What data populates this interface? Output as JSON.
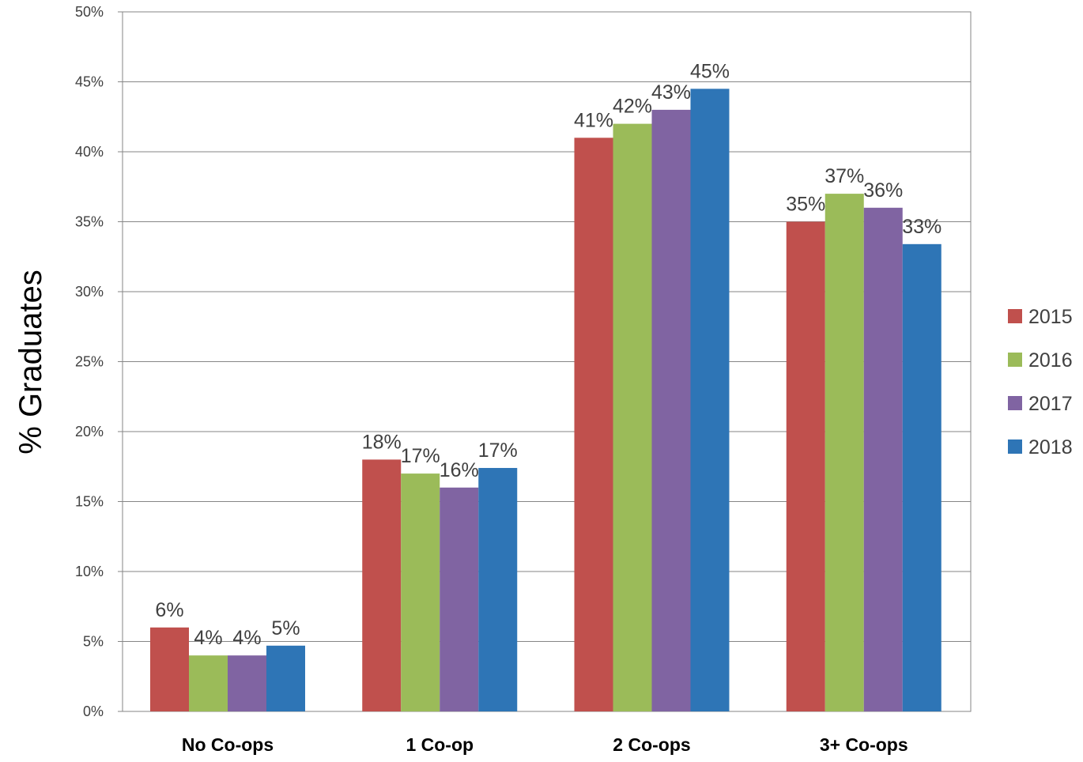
{
  "chart_data": {
    "type": "bar",
    "title": "",
    "xlabel": "",
    "ylabel": "% Graduates",
    "ylim": [
      0,
      50
    ],
    "yticks": [
      "0%",
      "5%",
      "10%",
      "15%",
      "20%",
      "25%",
      "30%",
      "35%",
      "40%",
      "45%",
      "50%"
    ],
    "grid": true,
    "legend_position": "right",
    "categories": [
      "No Co-ops",
      "1 Co-op",
      "2 Co-ops",
      "3+ Co-ops"
    ],
    "series": [
      {
        "name": "2015",
        "color": "#C0504D",
        "values": [
          6,
          18,
          41,
          35
        ],
        "labels": [
          "6%",
          "18%",
          "41%",
          "35%"
        ]
      },
      {
        "name": "2016",
        "color": "#9BBB59",
        "values": [
          4,
          17,
          42,
          37
        ],
        "labels": [
          "4%",
          "17%",
          "42%",
          "37%"
        ]
      },
      {
        "name": "2017",
        "color": "#8064A2",
        "values": [
          4,
          16,
          43,
          36
        ],
        "labels": [
          "4%",
          "16%",
          "43%",
          "36%"
        ]
      },
      {
        "name": "2018",
        "color": "#2E75B6",
        "values": [
          4.7,
          17.4,
          44.5,
          33.4
        ],
        "labels": [
          "5%",
          "17%",
          "45%",
          "33%"
        ]
      }
    ]
  }
}
